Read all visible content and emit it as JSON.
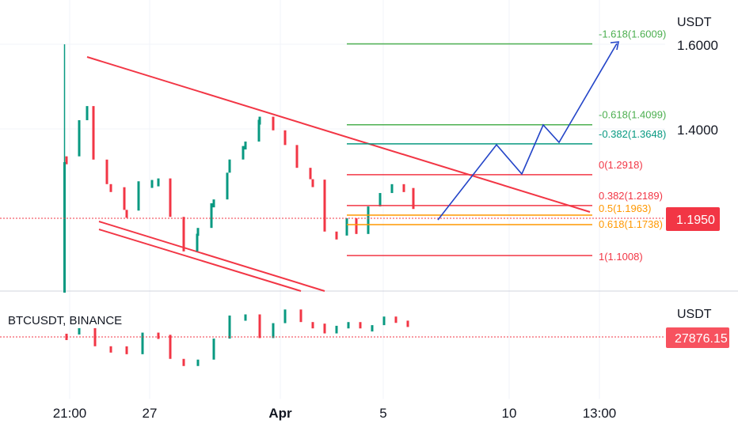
{
  "chart_data": [
    {
      "type": "candlestick",
      "panel": "main",
      "unit_label": "USDT",
      "y_ticks": [
        {
          "label": "1.6000",
          "value": 1.6
        },
        {
          "label": "1.4000",
          "value": 1.4
        }
      ],
      "last_price": {
        "label": "1.1950",
        "value": 1.195
      },
      "fib_levels": [
        {
          "label": "-1.618(1.6009)",
          "value": 1.6009,
          "color": "#4caf50"
        },
        {
          "label": "-0.618(1.4099)",
          "value": 1.4099,
          "color": "#4caf50"
        },
        {
          "label": "-0.382(1.3648)",
          "value": 1.3648,
          "color": "#089981"
        },
        {
          "label": "0(1.2918)",
          "value": 1.2918,
          "color": "#f23645"
        },
        {
          "label": "0.382(1.2189)",
          "value": 1.2189,
          "color": "#f23645"
        },
        {
          "label": "0.5(1.1963)",
          "value": 1.1963,
          "color": "#ff9800"
        },
        {
          "label": "0.618(1.1738)",
          "value": 1.1738,
          "color": "#ff9800"
        },
        {
          "label": "1(1.1008)",
          "value": 1.1008,
          "color": "#f23645"
        }
      ],
      "colors": {
        "up": "#089981",
        "down": "#f23645",
        "projection": "#2445c8",
        "channel": "#f23645",
        "price_line": "#f23645"
      }
    },
    {
      "type": "candlestick",
      "panel": "lower",
      "symbol": "BTCUSDT, BINANCE",
      "unit_label": "USDT",
      "last_price": {
        "label": "27876.15",
        "value": 27876.15
      }
    }
  ],
  "x_axis": {
    "ticks": [
      {
        "label": "21:00",
        "bold": false
      },
      {
        "label": "27",
        "bold": false
      },
      {
        "label": "Apr",
        "bold": true
      },
      {
        "label": "5",
        "bold": false
      },
      {
        "label": "10",
        "bold": false
      },
      {
        "label": "13:00",
        "bold": false
      }
    ]
  }
}
